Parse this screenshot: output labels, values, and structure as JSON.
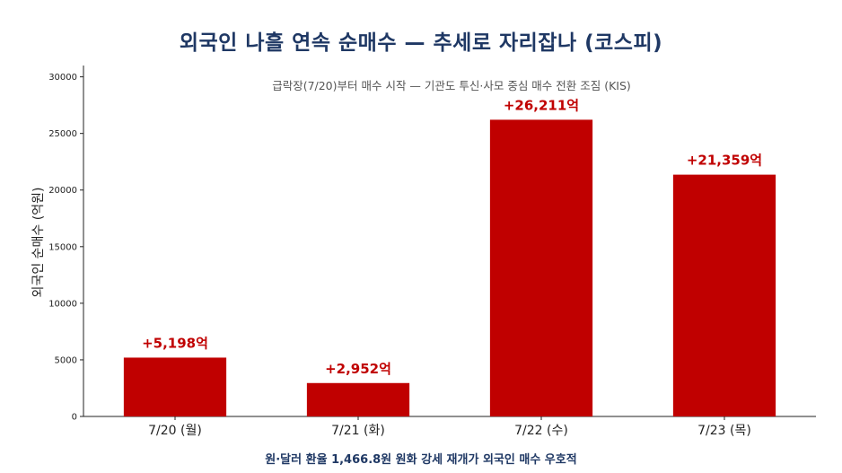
{
  "chart_data": {
    "type": "bar",
    "title": "외국인 나흘 연속 순매수 — 추세로 자리잡나 (코스피)",
    "subtitle": "급락장(7/20)부터 매수 시작 — 기관도 투신·사모 중심 매수 전환 조짐 (KIS)",
    "ylabel": "외국인 순매수 (억원)",
    "xlabel": "",
    "footnote": "원·달러 환율 1,466.8원 원화 강세 재개가 외국인 매수 우호적",
    "categories": [
      "7/20 (월)",
      "7/21 (화)",
      "7/22 (수)",
      "7/23 (목)"
    ],
    "values": [
      5198,
      2952,
      26211,
      21359
    ],
    "data_labels": [
      "+5,198억",
      "+2,952억",
      "+26,211억",
      "+21,359억"
    ],
    "ylim": [
      0,
      31000
    ],
    "yticks": [
      0,
      5000,
      10000,
      15000,
      20000,
      25000,
      30000
    ],
    "ytick_labels": [
      "0",
      "5000",
      "10000",
      "15000",
      "20000",
      "25000",
      "30000"
    ],
    "grid": false,
    "bar_color": "#c00000",
    "label_color": "#c00000"
  }
}
